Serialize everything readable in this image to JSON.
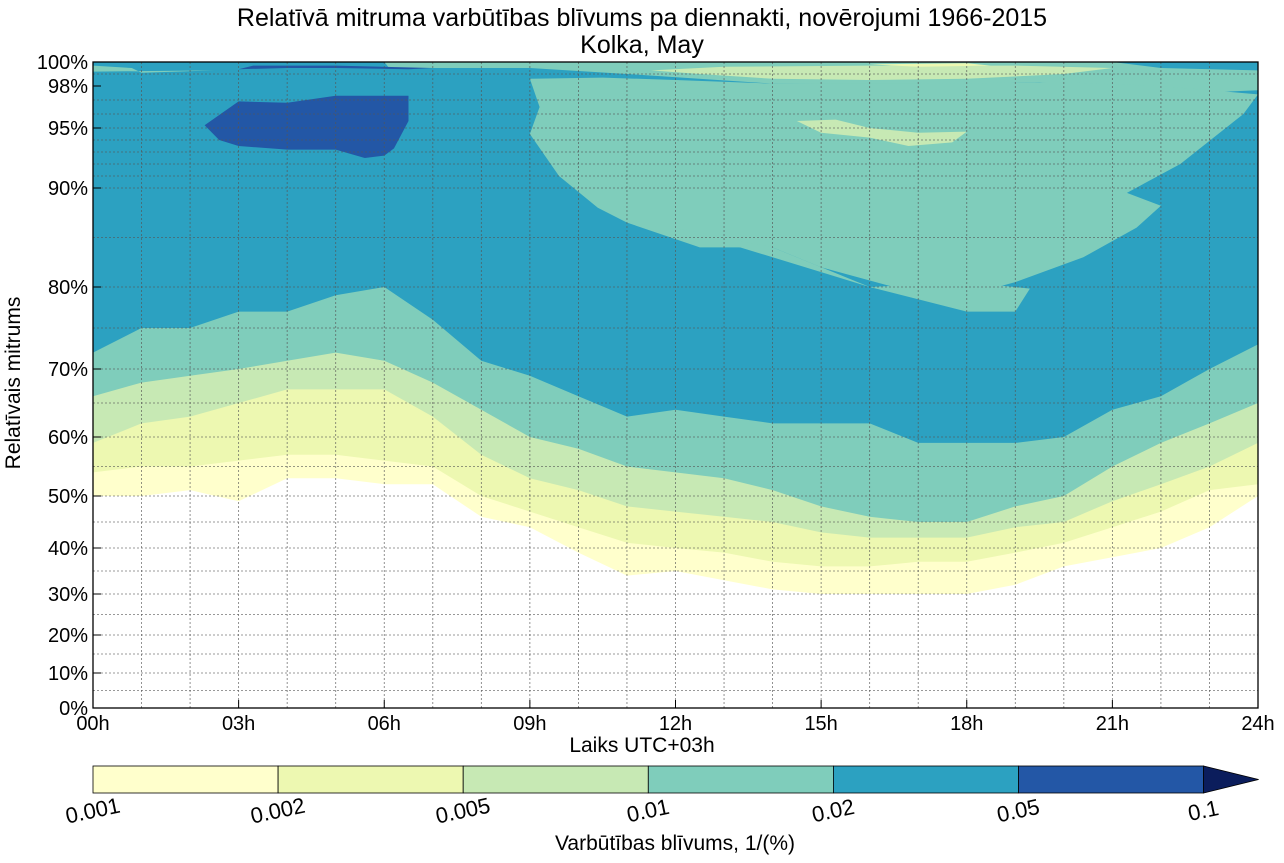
{
  "chart_data": {
    "type": "heatmap",
    "subtype": "filled-contour",
    "title": "Relatīvā mitruma varbūtības blīvums pa diennakti, novērojumi 1966-2015",
    "subtitle": "Kolka, May",
    "xlabel": "Laiks UTC+03h",
    "ylabel": "Relatīvais mitrums",
    "x_ticks": [
      "00h",
      "03h",
      "06h",
      "09h",
      "12h",
      "15h",
      "18h",
      "21h",
      "24h"
    ],
    "y_ticks": [
      "0%",
      "10%",
      "20%",
      "30%",
      "40%",
      "50%",
      "60%",
      "70%",
      "80%",
      "90%",
      "95%",
      "98%",
      "100%"
    ],
    "y_tick_values": [
      0,
      10,
      20,
      30,
      40,
      50,
      60,
      70,
      80,
      90,
      95,
      98,
      100
    ],
    "xlim": [
      0,
      24
    ],
    "ylim": [
      0,
      100
    ],
    "grid": true,
    "colorbar": {
      "label": "Varbūtības blīvums, 1/(%)",
      "levels": [
        0.001,
        0.002,
        0.005,
        0.01,
        0.02,
        0.05,
        0.1
      ],
      "tick_labels": [
        "0.001",
        "0.002",
        "0.005",
        "0.01",
        "0.02",
        "0.05",
        "0.1"
      ],
      "colors": [
        "#ffffcc",
        "#edf8b1",
        "#c7e9b4",
        "#7fcdbb",
        "#2ca1c1",
        "#2357a6",
        "#0b1d5c"
      ],
      "extend": "max"
    },
    "x": [
      0,
      1,
      2,
      3,
      4,
      5,
      6,
      7,
      8,
      9,
      10,
      11,
      12,
      13,
      14,
      15,
      16,
      17,
      18,
      19,
      20,
      21,
      22,
      23,
      24
    ],
    "level_boundaries_lower": [
      {
        "level": 0.001,
        "y": [
          50,
          50,
          51,
          49,
          53,
          53,
          52,
          52,
          46,
          44,
          39,
          34,
          35,
          33,
          31,
          30,
          30,
          30,
          30,
          32,
          36,
          38,
          40,
          44,
          50
        ]
      },
      {
        "level": 0.002,
        "y": [
          54,
          55,
          55,
          56,
          57,
          57,
          56,
          55,
          50,
          47,
          44,
          41,
          40,
          39,
          37,
          36,
          36,
          37,
          37,
          39,
          41,
          44,
          47,
          51,
          52
        ]
      },
      {
        "level": 0.005,
        "y": [
          59,
          62,
          63,
          65,
          67,
          67,
          67,
          63,
          57,
          53,
          51,
          48,
          47,
          46,
          45,
          43,
          42,
          42,
          42,
          44,
          45,
          49,
          52,
          55,
          59
        ]
      },
      {
        "level": 0.01,
        "y": [
          66,
          68,
          69,
          70,
          71,
          72,
          71,
          68,
          64,
          60,
          58,
          55,
          54,
          53,
          51,
          48,
          46,
          45,
          45,
          48,
          50,
          55,
          59,
          62,
          65
        ]
      },
      {
        "level": 0.02,
        "y": [
          72,
          75,
          75,
          77,
          77,
          79,
          80,
          76,
          71,
          69,
          66,
          63,
          64,
          63,
          62,
          62,
          62,
          59,
          59,
          59,
          60,
          64,
          66,
          70,
          73
        ]
      }
    ]
  }
}
